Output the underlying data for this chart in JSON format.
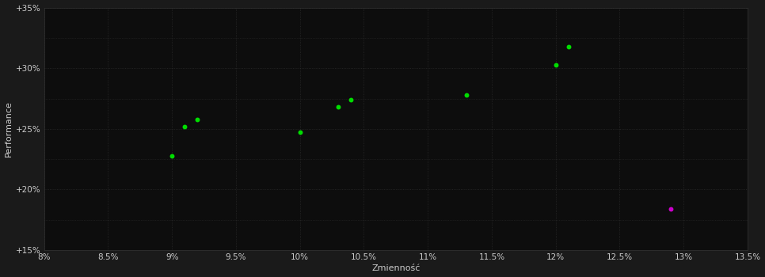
{
  "xlabel": "Zmienność",
  "ylabel": "Performance",
  "background_color": "#1a1a1a",
  "plot_bg_color": "#0d0d0d",
  "grid_color": "#2a2a2a",
  "text_color": "#cccccc",
  "xlim": [
    0.08,
    0.135
  ],
  "ylim": [
    0.15,
    0.35
  ],
  "xticks": [
    0.08,
    0.085,
    0.09,
    0.095,
    0.1,
    0.105,
    0.11,
    0.115,
    0.12,
    0.125,
    0.13,
    0.135
  ],
  "yticks": [
    0.15,
    0.2,
    0.25,
    0.3,
    0.35
  ],
  "green_points": [
    [
      0.09,
      0.228
    ],
    [
      0.091,
      0.252
    ],
    [
      0.092,
      0.258
    ],
    [
      0.1,
      0.247
    ],
    [
      0.103,
      0.268
    ],
    [
      0.104,
      0.274
    ],
    [
      0.113,
      0.278
    ],
    [
      0.12,
      0.303
    ],
    [
      0.121,
      0.318
    ]
  ],
  "magenta_points": [
    [
      0.129,
      0.184
    ]
  ],
  "green_color": "#00dd00",
  "magenta_color": "#cc00cc",
  "point_size": 18
}
